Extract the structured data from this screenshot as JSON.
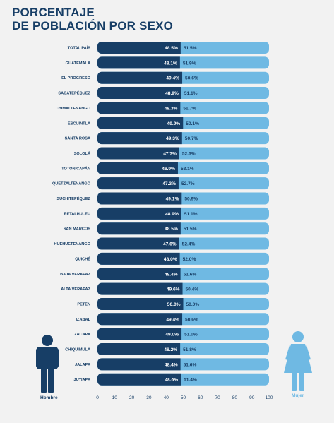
{
  "title": {
    "line1": "PORCENTAJE",
    "line2": "DE POBLACIÓN POR SEXO"
  },
  "legend": {
    "male": "Hombre",
    "female": "Mujer"
  },
  "colors": {
    "male": "#173e66",
    "female": "#6fb9e3",
    "background": "#f2f2f2"
  },
  "chart_data": {
    "type": "bar",
    "stacked": true,
    "orientation": "horizontal",
    "categories": [
      "TOTAL PAÍS",
      "GUATEMALA",
      "EL PROGRESO",
      "SACATEPÉQUEZ",
      "CHIMALTENANGO",
      "ESCUINTLA",
      "SANTA ROSA",
      "SOLOLÁ",
      "TOTONICAPÁN",
      "QUETZALTENANGO",
      "SUCHITEPÉQUEZ",
      "RETALHULEU",
      "SAN MARCOS",
      "HUEHUETENANGO",
      "QUICHÉ",
      "BAJA VERAPAZ",
      "ALTA VERAPAZ",
      "PETÉN",
      "IZABAL",
      "ZACAPA",
      "CHIQUIMULA",
      "JALAPA",
      "JUTIAPA"
    ],
    "series": [
      {
        "name": "Hombre",
        "values": [
          48.5,
          48.1,
          49.4,
          48.9,
          48.3,
          49.9,
          49.3,
          47.7,
          46.9,
          47.3,
          49.1,
          48.9,
          48.5,
          47.6,
          48.0,
          48.4,
          49.6,
          50.0,
          49.4,
          49.0,
          48.2,
          48.4,
          48.6
        ]
      },
      {
        "name": "Mujer",
        "values": [
          51.5,
          51.9,
          50.6,
          51.1,
          51.7,
          50.1,
          50.7,
          52.3,
          53.1,
          52.7,
          50.9,
          51.1,
          51.5,
          52.4,
          52.0,
          51.6,
          50.4,
          50.0,
          50.6,
          51.0,
          51.8,
          51.6,
          51.4
        ]
      }
    ],
    "xlim": [
      0,
      100
    ],
    "xticks": [
      0,
      10,
      20,
      30,
      40,
      50,
      60,
      70,
      80,
      90,
      100
    ]
  }
}
